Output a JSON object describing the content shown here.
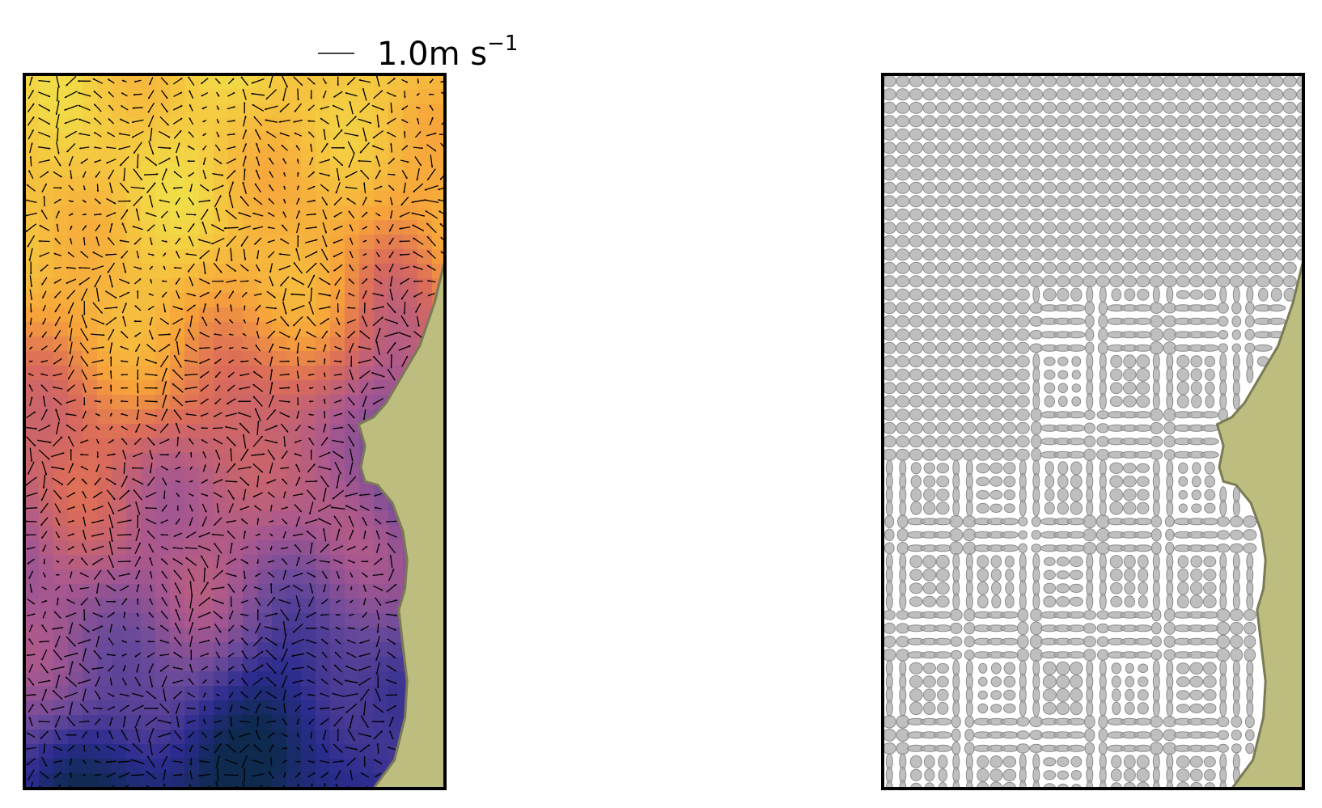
{
  "figure": {
    "background": "#ffffff",
    "panel_border": "#000000",
    "land_fill": "#bdbd80",
    "land_edge": "#7a7a55",
    "colormap": [
      "#0e2a4f",
      "#2b2c8f",
      "#6b4a9b",
      "#a9588f",
      "#db6b5a",
      "#f7a23a",
      "#f5c53f",
      "#efe54a"
    ],
    "arrow_color": "#000000",
    "ellipse_fill": "#a9a9a9",
    "ellipse_edge": "#8c8c8c"
  },
  "scale_key": {
    "value_text": "1.0m s",
    "exponent_text": "−1",
    "speed": 1.0
  },
  "left_panel": {
    "type": "velocity-field-over-scalar-map"
  },
  "right_panel": {
    "type": "uncertainty-ellipse-field"
  }
}
